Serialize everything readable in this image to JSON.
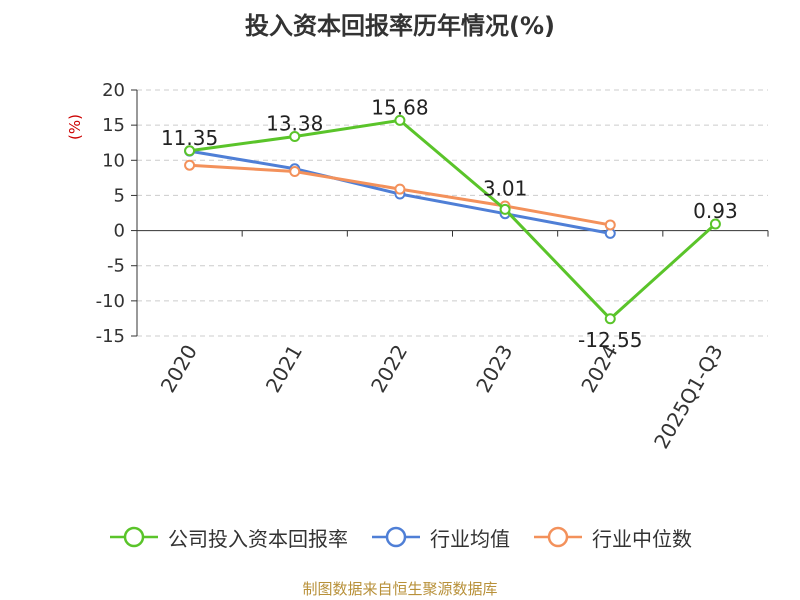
{
  "chart_data": {
    "type": "line",
    "title": "投入资本回报率历年情况(%)",
    "ylabel": "(%)",
    "xlabel": "",
    "categories": [
      "2020",
      "2021",
      "2022",
      "2023",
      "2024",
      "2025Q1-Q3"
    ],
    "ylim": [
      -15,
      20
    ],
    "yticks": [
      20,
      15,
      10,
      5,
      0,
      -5,
      -10,
      -15
    ],
    "grid": true,
    "legend_position": "bottom",
    "series": [
      {
        "name": "公司投入资本回报率",
        "color": "#5ac42a",
        "values": [
          11.35,
          13.38,
          15.68,
          3.01,
          -12.55,
          0.93
        ],
        "labels": [
          "11.35",
          "13.38",
          "15.68",
          "3.01",
          "-12.55",
          "0.93"
        ]
      },
      {
        "name": "行业均值",
        "color": "#4f7fd6",
        "values": [
          11.3,
          8.8,
          5.2,
          2.4,
          -0.4,
          null
        ]
      },
      {
        "name": "行业中位数",
        "color": "#f3915b",
        "values": [
          9.3,
          8.4,
          5.9,
          3.5,
          0.8,
          null
        ]
      }
    ]
  },
  "source": "制图数据来自恒生聚源数据库"
}
